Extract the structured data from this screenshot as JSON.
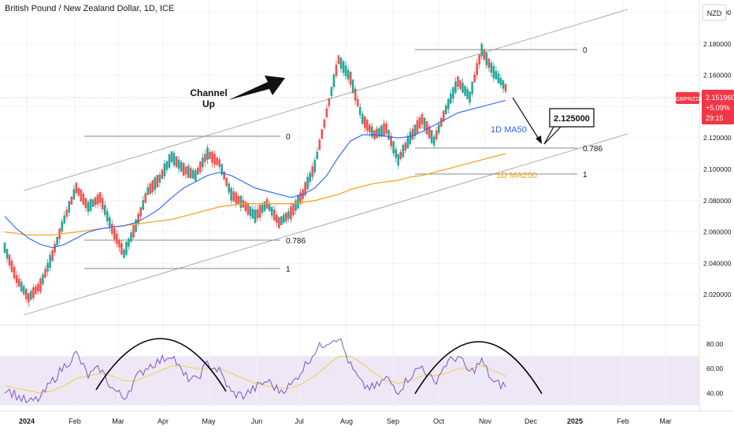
{
  "header": {
    "title": "British Pound / New Zealand Dollar, 1D, ICE",
    "currency": "NZD"
  },
  "price_tag": {
    "symbol": "GBPNZD",
    "price": "2.151960",
    "change": "+5.09%",
    "timer": "29:15"
  },
  "colors": {
    "up": "#26a69a",
    "down": "#ef5350",
    "ma50": "#2962ff",
    "ma200": "#f5a623",
    "rsi": "#7e57c2",
    "rsi_ma": "#f0d35a",
    "rsi_band": "#ede7f6",
    "price_tag": "#f23645",
    "annotation_blue": "#2962ff",
    "annotation_orange": "#f5a623"
  },
  "annotations": {
    "channel_up": [
      "Channel",
      "Up"
    ],
    "target": "2.125000",
    "ma50_label": "1D MA50",
    "ma200_label": "1D MA200",
    "fib_left_top": "0",
    "fib_left_786": "0.786",
    "fib_left_1": "1",
    "fib_right_top": "0",
    "fib_right_786": "0.786",
    "fib_right_1": "1"
  },
  "chart_data": [
    {
      "type": "candlestick",
      "title": "British Pound / New Zealand Dollar, 1D, ICE",
      "x_ticks": [
        "2024",
        "Feb",
        "Mar",
        "Apr",
        "May",
        "Jun",
        "Jul",
        "Aug",
        "Sep",
        "Oct",
        "Nov",
        "Dec",
        "2025",
        "Feb",
        "Mar"
      ],
      "y_ticks": [
        "2.200000",
        "2.180000",
        "2.160000",
        "2.140000",
        "2.120000",
        "2.100000",
        "2.080000",
        "2.060000",
        "2.040000",
        "2.020000"
      ],
      "ylim": [
        2.005,
        2.204
      ],
      "last_price": 2.15196,
      "ohlc_weekly_approx": [
        [
          2.055,
          2.065,
          2.042,
          2.05
        ],
        [
          2.05,
          2.052,
          2.025,
          2.03
        ],
        [
          2.03,
          2.032,
          2.012,
          2.018
        ],
        [
          2.018,
          2.03,
          2.01,
          2.026
        ],
        [
          2.026,
          2.048,
          2.022,
          2.045
        ],
        [
          2.045,
          2.07,
          2.04,
          2.068
        ],
        [
          2.068,
          2.092,
          2.062,
          2.088
        ],
        [
          2.088,
          2.094,
          2.07,
          2.076
        ],
        [
          2.076,
          2.09,
          2.07,
          2.082
        ],
        [
          2.082,
          2.086,
          2.058,
          2.062
        ],
        [
          2.062,
          2.066,
          2.04,
          2.046
        ],
        [
          2.046,
          2.068,
          2.042,
          2.064
        ],
        [
          2.064,
          2.09,
          2.06,
          2.086
        ],
        [
          2.086,
          2.098,
          2.08,
          2.094
        ],
        [
          2.094,
          2.112,
          2.088,
          2.108
        ],
        [
          2.108,
          2.118,
          2.096,
          2.1
        ],
        [
          2.1,
          2.108,
          2.09,
          2.096
        ],
        [
          2.096,
          2.114,
          2.092,
          2.11
        ],
        [
          2.11,
          2.12,
          2.1,
          2.104
        ],
        [
          2.104,
          2.108,
          2.08,
          2.084
        ],
        [
          2.084,
          2.09,
          2.072,
          2.078
        ],
        [
          2.078,
          2.084,
          2.066,
          2.07
        ],
        [
          2.07,
          2.082,
          2.066,
          2.078
        ],
        [
          2.078,
          2.08,
          2.064,
          2.066
        ],
        [
          2.066,
          2.076,
          2.06,
          2.072
        ],
        [
          2.072,
          2.086,
          2.068,
          2.084
        ],
        [
          2.084,
          2.105,
          2.082,
          2.102
        ],
        [
          2.102,
          2.14,
          2.1,
          2.136
        ],
        [
          2.136,
          2.175,
          2.132,
          2.17
        ],
        [
          2.17,
          2.19,
          2.152,
          2.158
        ],
        [
          2.158,
          2.162,
          2.128,
          2.132
        ],
        [
          2.132,
          2.14,
          2.116,
          2.122
        ],
        [
          2.122,
          2.13,
          2.114,
          2.126
        ],
        [
          2.126,
          2.132,
          2.102,
          2.106
        ],
        [
          2.106,
          2.124,
          2.1,
          2.12
        ],
        [
          2.12,
          2.136,
          2.116,
          2.132
        ],
        [
          2.132,
          2.138,
          2.112,
          2.118
        ],
        [
          2.118,
          2.142,
          2.114,
          2.138
        ],
        [
          2.138,
          2.16,
          2.134,
          2.156
        ],
        [
          2.156,
          2.162,
          2.14,
          2.146
        ],
        [
          2.146,
          2.182,
          2.142,
          2.176
        ],
        [
          2.176,
          2.178,
          2.158,
          2.162
        ],
        [
          2.162,
          2.166,
          2.146,
          2.152
        ]
      ],
      "series": [
        {
          "name": "1D MA50",
          "values": [
            2.07,
            2.062,
            2.056,
            2.052,
            2.05,
            2.052,
            2.056,
            2.06,
            2.062,
            2.063,
            2.064,
            2.066,
            2.07,
            2.075,
            2.082,
            2.088,
            2.092,
            2.096,
            2.098,
            2.096,
            2.092,
            2.088,
            2.086,
            2.084,
            2.082,
            2.084,
            2.088,
            2.096,
            2.108,
            2.118,
            2.122,
            2.122,
            2.121,
            2.12,
            2.121,
            2.124,
            2.128,
            2.132,
            2.136,
            2.138,
            2.14,
            2.142,
            2.144
          ]
        },
        {
          "name": "1D MA200",
          "values": [
            2.06,
            2.059,
            2.058,
            2.058,
            2.058,
            2.059,
            2.06,
            2.061,
            2.062,
            2.063,
            2.064,
            2.065,
            2.066,
            2.067,
            2.068,
            2.07,
            2.072,
            2.074,
            2.076,
            2.077,
            2.078,
            2.078,
            2.078,
            2.078,
            2.078,
            2.079,
            2.08,
            2.082,
            2.084,
            2.087,
            2.089,
            2.091,
            2.092,
            2.093,
            2.095,
            2.096,
            2.098,
            2.1,
            2.102,
            2.104,
            2.106,
            2.108,
            2.11
          ]
        }
      ]
    },
    {
      "type": "line",
      "title": "RSI",
      "y_ticks": [
        "80.00",
        "60.00",
        "40.00"
      ],
      "ylim": [
        28,
        92
      ],
      "band": [
        30,
        70
      ],
      "series": [
        {
          "name": "RSI",
          "values": [
            44,
            38,
            32,
            36,
            50,
            62,
            72,
            54,
            60,
            44,
            36,
            52,
            62,
            66,
            72,
            54,
            50,
            64,
            58,
            40,
            38,
            44,
            50,
            42,
            46,
            60,
            74,
            82,
            86,
            62,
            46,
            44,
            52,
            42,
            54,
            62,
            48,
            64,
            70,
            56,
            66,
            48,
            46
          ]
        },
        {
          "name": "RSI MA",
          "values": [
            46,
            44,
            42,
            40,
            42,
            46,
            52,
            54,
            56,
            54,
            50,
            50,
            54,
            58,
            62,
            62,
            60,
            60,
            60,
            56,
            52,
            48,
            46,
            44,
            44,
            48,
            54,
            62,
            70,
            70,
            64,
            56,
            50,
            48,
            50,
            54,
            54,
            56,
            60,
            60,
            62,
            58,
            54
          ]
        }
      ]
    }
  ]
}
